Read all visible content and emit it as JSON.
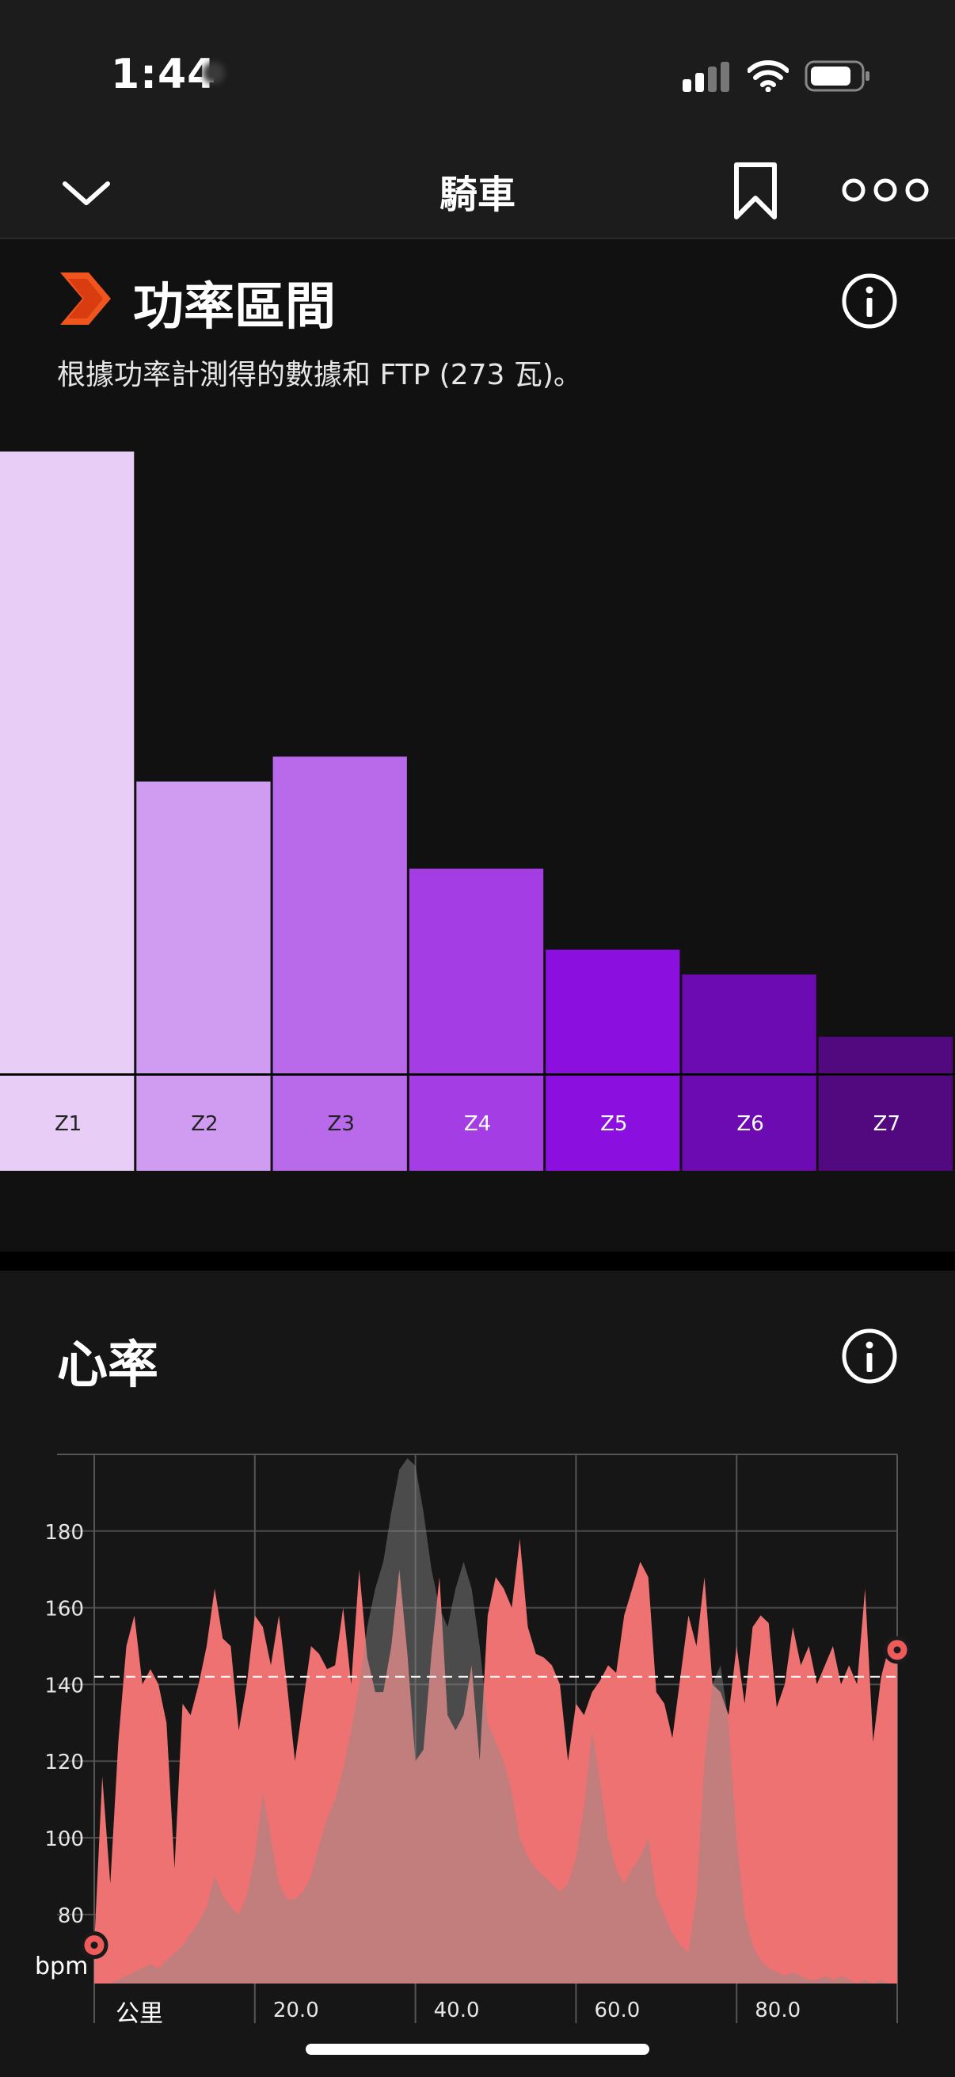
{
  "status_bar": {
    "time": "1:44"
  },
  "nav": {
    "title": "騎車"
  },
  "power_zones": {
    "title": "功率區間",
    "subtitle": "根據功率計測得的數據和 FTP (273 瓦)。"
  },
  "heart_rate": {
    "title": "心率"
  },
  "colors": {
    "brand": "#f0551e",
    "z1": "#e8cdf7",
    "z2": "#d09cf2",
    "z3": "#b96aeb",
    "z4": "#a43ee4",
    "z5": "#8b10e0",
    "z6": "#6c0bb1",
    "z7": "#52087f",
    "hr_fill": "#ef7272",
    "power_overlay": "#8c8c8c"
  },
  "chart_data": [
    {
      "type": "bar",
      "categories": [
        "Z1",
        "Z2",
        "Z3",
        "Z4",
        "Z5",
        "Z6",
        "Z7"
      ],
      "values": [
        100,
        47,
        51,
        33,
        20,
        16,
        6
      ],
      "value_unit": "% of largest zone",
      "title": "功率區間"
    },
    {
      "type": "area",
      "title": "心率",
      "xlabel": "公里",
      "ylabel": "bpm",
      "x_ticks": [
        "20.0",
        "40.0",
        "60.0",
        "80.0"
      ],
      "y_ticks": [
        80,
        100,
        120,
        140,
        160,
        180
      ],
      "xlim": [
        0,
        100
      ],
      "ylim": [
        62,
        200
      ],
      "grid": true,
      "reference_line": {
        "value": 142,
        "style": "dashed"
      },
      "series": [
        {
          "x": [
            0,
            1,
            2,
            3,
            4,
            5,
            6,
            7,
            8,
            9,
            10,
            11,
            12,
            13,
            14,
            15,
            16,
            17,
            18,
            19,
            20,
            21,
            22,
            23,
            24,
            25,
            26,
            27,
            28,
            29,
            30,
            31,
            32,
            33,
            34,
            35,
            36,
            37,
            38,
            39,
            40,
            41,
            42,
            43,
            44,
            45,
            46,
            47,
            48,
            49,
            50,
            51,
            52,
            53,
            54,
            55,
            56,
            57,
            58,
            59,
            60,
            61,
            62,
            63,
            64,
            65,
            66,
            67,
            68,
            69,
            70,
            71,
            72,
            73,
            74,
            75,
            76,
            77,
            78,
            79,
            80,
            81,
            82,
            83,
            84,
            85,
            86,
            87,
            88,
            89,
            90,
            91,
            92,
            93,
            94,
            95,
            96,
            97,
            98,
            99,
            100
          ],
          "values": [
            72,
            116,
            88,
            125,
            150,
            158,
            140,
            144,
            140,
            130,
            92,
            135,
            132,
            140,
            150,
            165,
            152,
            150,
            128,
            140,
            158,
            155,
            145,
            158,
            140,
            120,
            135,
            150,
            148,
            144,
            145,
            160,
            140,
            170,
            147,
            138,
            138,
            150,
            170,
            148,
            120,
            123,
            148,
            168,
            132,
            128,
            132,
            145,
            120,
            158,
            168,
            165,
            160,
            178,
            155,
            148,
            147,
            145,
            140,
            120,
            135,
            132,
            138,
            141,
            145,
            143,
            158,
            165,
            172,
            168,
            138,
            135,
            126,
            142,
            158,
            150,
            168,
            140,
            138,
            132,
            150,
            135,
            155,
            158,
            156,
            134,
            140,
            155,
            145,
            150,
            140,
            145,
            150,
            140,
            145,
            140,
            165,
            125,
            142,
            150,
            149
          ]
        },
        {
          "x": [
            0,
            1,
            2,
            3,
            4,
            5,
            6,
            7,
            8,
            9,
            10,
            11,
            12,
            13,
            14,
            15,
            16,
            17,
            18,
            19,
            20,
            21,
            22,
            23,
            24,
            25,
            26,
            27,
            28,
            29,
            30,
            31,
            32,
            33,
            34,
            35,
            36,
            37,
            38,
            39,
            40,
            41,
            42,
            43,
            44,
            45,
            46,
            47,
            48,
            49,
            50,
            51,
            52,
            53,
            54,
            55,
            56,
            57,
            58,
            59,
            60,
            61,
            62,
            63,
            64,
            65,
            66,
            67,
            68,
            69,
            70,
            71,
            72,
            73,
            74,
            75,
            76,
            77,
            78,
            79,
            80,
            81,
            82,
            83,
            84,
            85,
            86,
            87,
            88,
            89,
            90,
            91,
            92,
            93,
            94,
            95,
            96,
            97,
            98,
            99,
            100
          ],
          "values": [
            62,
            62,
            62,
            63,
            64,
            65,
            66,
            67,
            66,
            68,
            70,
            72,
            75,
            78,
            82,
            90,
            85,
            82,
            80,
            85,
            95,
            112,
            100,
            88,
            84,
            84,
            86,
            90,
            98,
            105,
            110,
            118,
            128,
            140,
            155,
            165,
            172,
            185,
            196,
            199,
            197,
            185,
            170,
            160,
            155,
            165,
            172,
            165,
            150,
            130,
            125,
            120,
            112,
            100,
            95,
            92,
            90,
            88,
            86,
            88,
            95,
            108,
            128,
            115,
            100,
            92,
            88,
            92,
            95,
            100,
            85,
            80,
            75,
            72,
            70,
            85,
            120,
            140,
            145,
            130,
            100,
            80,
            72,
            68,
            66,
            65,
            64,
            65,
            64,
            63,
            63,
            64,
            63,
            64,
            63,
            62,
            63,
            62,
            63,
            62,
            62
          ]
        }
      ]
    }
  ]
}
